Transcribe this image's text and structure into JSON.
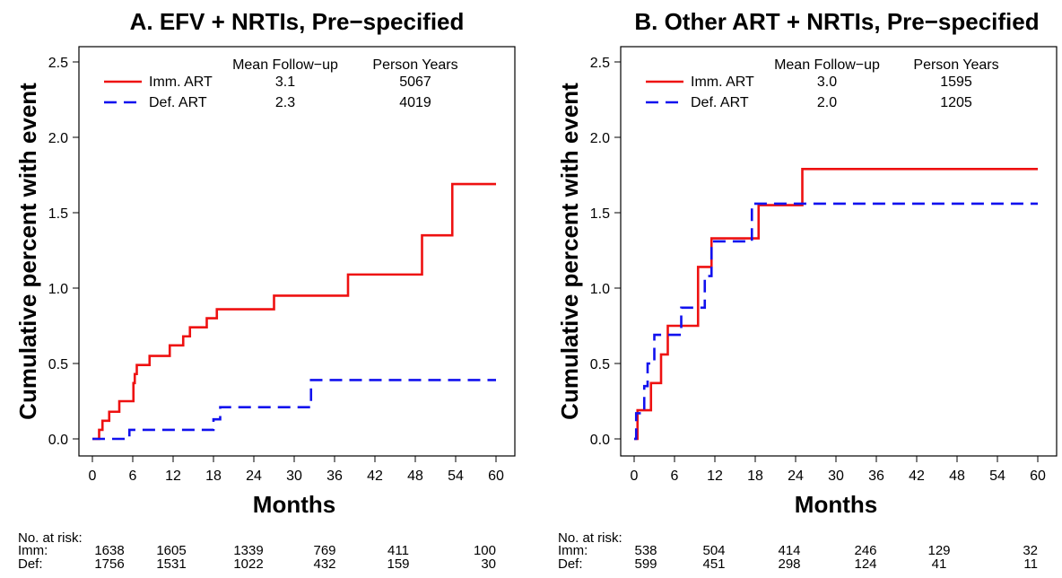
{
  "chart_data": [
    {
      "type": "line",
      "title": "A. EFV + NRTIs, Pre−specified",
      "xlabel": "Months",
      "ylabel": "Cumulative percent with event",
      "xlim": [
        0,
        60
      ],
      "ylim": [
        0,
        2.5
      ],
      "xticks": [
        "0",
        "6",
        "12",
        "18",
        "24",
        "30",
        "36",
        "42",
        "48",
        "54",
        "60"
      ],
      "yticks": [
        "0.0",
        "0.5",
        "1.0",
        "1.5",
        "2.0",
        "2.5"
      ],
      "legend": {
        "headers": [
          "Mean Follow−up",
          "Person Years"
        ],
        "rows": [
          {
            "label": "Imm. ART",
            "follow_up": "3.1",
            "person_years": "5067"
          },
          {
            "label": "Def. ART",
            "follow_up": "2.3",
            "person_years": "4019"
          }
        ]
      },
      "series": [
        {
          "name": "Imm. ART",
          "color": "#ee1111",
          "style": "solid",
          "x": [
            0,
            1,
            1.5,
            2.5,
            4,
            6.1,
            6.3,
            6.6,
            8.5,
            11.5,
            13.5,
            14.5,
            17,
            18.5,
            27,
            38,
            49,
            53.5,
            60
          ],
          "y": [
            0,
            0.06,
            0.12,
            0.18,
            0.25,
            0.37,
            0.43,
            0.49,
            0.55,
            0.62,
            0.68,
            0.74,
            0.8,
            0.86,
            0.95,
            1.09,
            1.35,
            1.69,
            1.69
          ]
        },
        {
          "name": "Def. ART",
          "color": "#1111ee",
          "style": "dashed",
          "x": [
            0,
            5.5,
            18,
            19,
            32.5,
            60
          ],
          "y": [
            0,
            0.06,
            0.13,
            0.21,
            0.39,
            0.39
          ]
        }
      ],
      "risk_table": {
        "heading": "No. at risk:",
        "rows": [
          {
            "label": "Imm:",
            "values": [
              "1638",
              "1605",
              "1339",
              "769",
              "411",
              "100"
            ]
          },
          {
            "label": "Def:",
            "values": [
              "1756",
              "1531",
              "1022",
              "432",
              "159",
              "30"
            ]
          }
        ]
      }
    },
    {
      "type": "line",
      "title": "B. Other ART + NRTIs, Pre−specified",
      "xlabel": "Months",
      "ylabel": "Cumulative percent with event",
      "xlim": [
        0,
        60
      ],
      "ylim": [
        0,
        2.5
      ],
      "xticks": [
        "0",
        "6",
        "12",
        "18",
        "24",
        "30",
        "36",
        "42",
        "48",
        "54",
        "60"
      ],
      "yticks": [
        "0.0",
        "0.5",
        "1.0",
        "1.5",
        "2.0",
        "2.5"
      ],
      "legend": {
        "headers": [
          "Mean Follow−up",
          "Person Years"
        ],
        "rows": [
          {
            "label": "Imm. ART",
            "follow_up": "3.0",
            "person_years": "1595"
          },
          {
            "label": "Def. ART",
            "follow_up": "2.0",
            "person_years": "1205"
          }
        ]
      },
      "series": [
        {
          "name": "Imm. ART",
          "color": "#ee1111",
          "style": "solid",
          "x": [
            0,
            0.5,
            2.5,
            4,
            5,
            9.5,
            11.5,
            18.5,
            25,
            60
          ],
          "y": [
            0,
            0.19,
            0.37,
            0.56,
            0.75,
            1.14,
            1.33,
            1.55,
            1.79,
            1.79
          ]
        },
        {
          "name": "Def. ART",
          "color": "#1111ee",
          "style": "dashed",
          "x": [
            0,
            0.3,
            1.5,
            2,
            3,
            7,
            10.5,
            11.5,
            17.5,
            60
          ],
          "y": [
            0,
            0.17,
            0.35,
            0.5,
            0.69,
            0.87,
            1.08,
            1.31,
            1.56,
            1.56
          ]
        }
      ],
      "risk_table": {
        "heading": "No. at risk:",
        "rows": [
          {
            "label": "Imm:",
            "values": [
              "538",
              "504",
              "414",
              "246",
              "129",
              "32"
            ]
          },
          {
            "label": "Def:",
            "values": [
              "599",
              "451",
              "298",
              "124",
              "41",
              "11"
            ]
          }
        ]
      }
    }
  ]
}
